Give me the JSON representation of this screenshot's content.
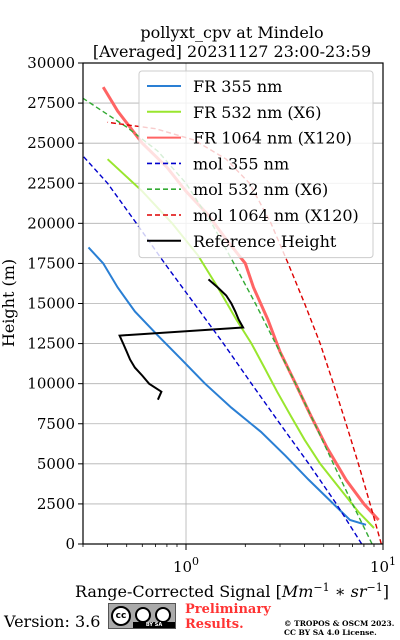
{
  "chart_data": {
    "type": "line",
    "title": [
      "pollyxt_cpv at Mindelo",
      "[Averaged] 20231127 23:00-23:59"
    ],
    "xlabel": "Range-Corrected Signal [Mm^-1 * sr^-1]",
    "ylabel": "Height (m)",
    "xscale": "log",
    "xlim": [
      0.3,
      10
    ],
    "ylim": [
      0,
      30000
    ],
    "xticks": [
      {
        "value": 1,
        "base": "10",
        "exp": "0"
      },
      {
        "value": 10,
        "base": "10",
        "exp": "1"
      }
    ],
    "yticks": [
      0,
      2500,
      5000,
      7500,
      10000,
      12500,
      15000,
      17500,
      20000,
      22500,
      25000,
      27500,
      30000
    ],
    "ytick_labels": [
      "0",
      "2500",
      "5000",
      "7500",
      "10000",
      "12500",
      "15000",
      "17500",
      "20000",
      "22500",
      "25000",
      "27500",
      "30000"
    ],
    "grid": true,
    "legend_position": "top-right",
    "series": [
      {
        "name": "FR 355 nm",
        "color": "#2a7fd4",
        "style": "solid",
        "points": [
          [
            8.2,
            1200
          ],
          [
            6.8,
            1500
          ],
          [
            5.6,
            2500
          ],
          [
            4.2,
            4000
          ],
          [
            3.2,
            5500
          ],
          [
            2.4,
            7000
          ],
          [
            1.7,
            8500
          ],
          [
            1.25,
            10000
          ],
          [
            0.95,
            11500
          ],
          [
            0.72,
            13000
          ],
          [
            0.55,
            14500
          ],
          [
            0.45,
            16000
          ],
          [
            0.38,
            17500
          ],
          [
            0.32,
            18500
          ]
        ]
      },
      {
        "name": "FR 532 nm (X6)",
        "color": "#99e62e",
        "style": "solid",
        "points": [
          [
            9.0,
            1000
          ],
          [
            7.5,
            2000
          ],
          [
            6.0,
            3500
          ],
          [
            4.8,
            5000
          ],
          [
            4.0,
            6500
          ],
          [
            3.4,
            8000
          ],
          [
            2.9,
            9500
          ],
          [
            2.5,
            11000
          ],
          [
            2.15,
            12500
          ],
          [
            1.8,
            14000
          ],
          [
            1.45,
            16000
          ],
          [
            1.15,
            18000
          ],
          [
            0.85,
            20000
          ],
          [
            0.6,
            22000
          ],
          [
            0.4,
            24000
          ]
        ]
      },
      {
        "name": "FR 1064 nm (X120)",
        "color": "#ff6464",
        "style": "solid",
        "points": [
          [
            9.5,
            1500
          ],
          [
            8.0,
            2500
          ],
          [
            6.5,
            4000
          ],
          [
            5.2,
            6000
          ],
          [
            4.3,
            8000
          ],
          [
            3.6,
            10000
          ],
          [
            3.0,
            12000
          ],
          [
            2.6,
            14000
          ],
          [
            2.2,
            16000
          ],
          [
            2.0,
            17500
          ],
          [
            1.6,
            19000
          ],
          [
            1.3,
            20500
          ],
          [
            1.0,
            22000
          ],
          [
            0.8,
            23500
          ],
          [
            0.6,
            25000
          ],
          [
            0.45,
            27000
          ],
          [
            0.38,
            28500
          ]
        ]
      },
      {
        "name": "mol 355 nm",
        "color": "#0000cc",
        "style": "dashed",
        "points": [
          [
            7.8,
            0
          ],
          [
            5.8,
            2500
          ],
          [
            4.2,
            5000
          ],
          [
            3.0,
            7500
          ],
          [
            2.15,
            10000
          ],
          [
            1.55,
            12500
          ],
          [
            1.1,
            15000
          ],
          [
            0.78,
            17500
          ],
          [
            0.56,
            20000
          ],
          [
            0.4,
            22500
          ],
          [
            0.3,
            24200
          ]
        ]
      },
      {
        "name": "mol 532 nm (X6)",
        "color": "#33aa33",
        "style": "dashed",
        "points": [
          [
            8.8,
            0
          ],
          [
            7.0,
            2500
          ],
          [
            5.6,
            5000
          ],
          [
            4.5,
            7500
          ],
          [
            3.6,
            10000
          ],
          [
            2.85,
            12500
          ],
          [
            2.25,
            15000
          ],
          [
            1.75,
            17500
          ],
          [
            1.35,
            20000
          ],
          [
            1.0,
            22500
          ],
          [
            0.72,
            24500
          ],
          [
            0.5,
            26000
          ],
          [
            0.3,
            27800
          ]
        ]
      },
      {
        "name": "mol 1064 nm (X120)",
        "color": "#dd0000",
        "style": "dashed",
        "points": [
          [
            9.8,
            0
          ],
          [
            8.6,
            2500
          ],
          [
            7.5,
            5000
          ],
          [
            6.5,
            7500
          ],
          [
            5.6,
            10000
          ],
          [
            4.8,
            12500
          ],
          [
            4.0,
            15000
          ],
          [
            3.3,
            17500
          ],
          [
            2.7,
            20000
          ],
          [
            2.1,
            22500
          ],
          [
            1.6,
            24000
          ],
          [
            1.1,
            25200
          ],
          [
            0.7,
            25900
          ],
          [
            0.4,
            26300
          ]
        ]
      },
      {
        "name": "Reference Height",
        "color": "#000000",
        "style": "solid",
        "points": [
          [
            0.72,
            9000
          ],
          [
            0.75,
            9500
          ],
          [
            0.65,
            10000
          ],
          [
            0.6,
            10500
          ],
          [
            0.55,
            11000
          ],
          [
            0.52,
            11500
          ],
          [
            0.5,
            12000
          ],
          [
            0.48,
            12500
          ],
          [
            0.46,
            13000
          ],
          [
            1.95,
            13500
          ],
          [
            1.85,
            14000
          ],
          [
            1.78,
            14500
          ],
          [
            1.7,
            15000
          ],
          [
            1.6,
            15500
          ],
          [
            1.45,
            16000
          ],
          [
            1.3,
            16500
          ]
        ]
      }
    ]
  },
  "footer": {
    "version": "Version: 3.6",
    "license_badge": {
      "cc": "cc",
      "text": "BY  SA"
    },
    "preliminary": [
      "Preliminary",
      "Results."
    ],
    "copyright": [
      "© TROPOS & OSCM 2023.",
      "CC BY SA 4.0 License."
    ]
  },
  "colors": {
    "background": "#ffffff",
    "grid": "#b0b0b0",
    "axis": "#000000"
  }
}
